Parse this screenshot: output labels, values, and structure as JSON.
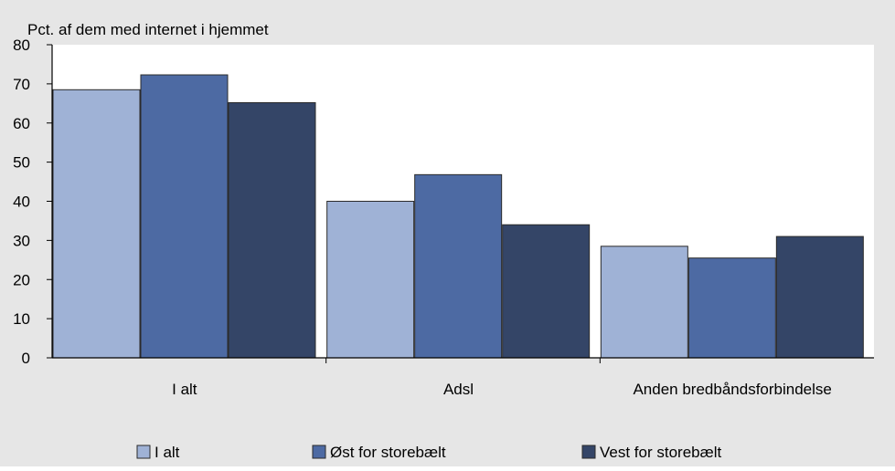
{
  "chart_data": {
    "type": "bar",
    "title": "",
    "ylabel": "Pct. af dem med internet i hjemmet",
    "xlabel": "",
    "categories": [
      "I alt",
      "Adsl",
      "Anden bredbåndsforbindelse"
    ],
    "series": [
      {
        "name": "I alt",
        "values": [
          68.5,
          40,
          28.5
        ],
        "color": "#9fb2d6"
      },
      {
        "name": "Øst for storebælt",
        "values": [
          72.3,
          46.8,
          25.5
        ],
        "color": "#4d6aa3"
      },
      {
        "name": "Vest for storebælt",
        "values": [
          65.2,
          34,
          31
        ],
        "color": "#344567"
      }
    ],
    "ylim": [
      0,
      80
    ],
    "yticks": [
      "0",
      "10",
      "20",
      "30",
      "40",
      "50",
      "60",
      "70",
      "80"
    ],
    "grid": false,
    "legend_position": "bottom",
    "background_color": "#e6e6e6",
    "plot_background_color": "#ffffff"
  }
}
